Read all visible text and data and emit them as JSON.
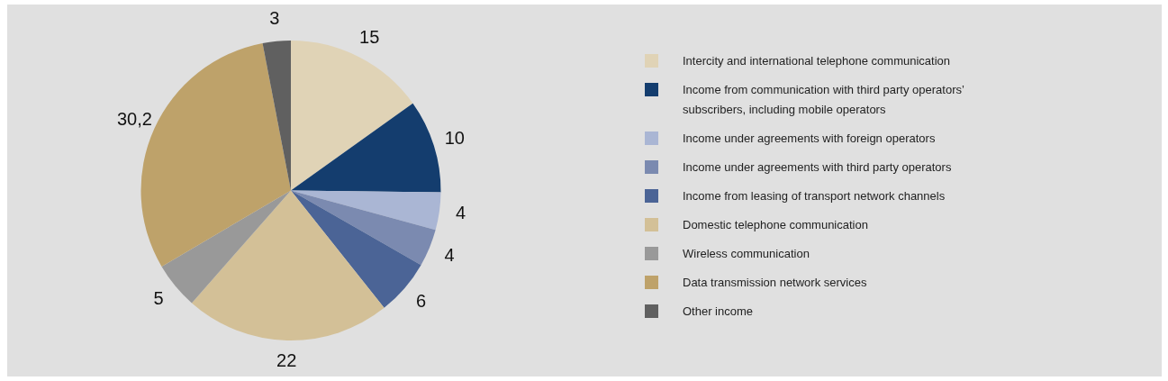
{
  "chart_data": {
    "type": "pie",
    "categories": [
      "Intercity and international telephone communication",
      "Income from communication with third party operators’ subscribers, including mobile operators",
      "Income under agreements with foreign operators",
      "Income under agreements with third party operators",
      "Income from leasing of transport network channels",
      "Domestic telephone communication",
      "Wireless communication",
      "Data transmission network services",
      "Other income"
    ],
    "values": [
      15,
      10,
      4,
      4,
      6,
      22,
      5,
      30.2,
      3
    ],
    "value_labels": [
      "15",
      "10",
      "4",
      "4",
      "6",
      "22",
      "5",
      "30,2",
      "3"
    ],
    "colors": [
      "#e0d3b6",
      "#143d6e",
      "#aab6d4",
      "#7b8ab0",
      "#4b6496",
      "#d3c097",
      "#999999",
      "#bea26a",
      "#606060"
    ],
    "legend": "right"
  }
}
